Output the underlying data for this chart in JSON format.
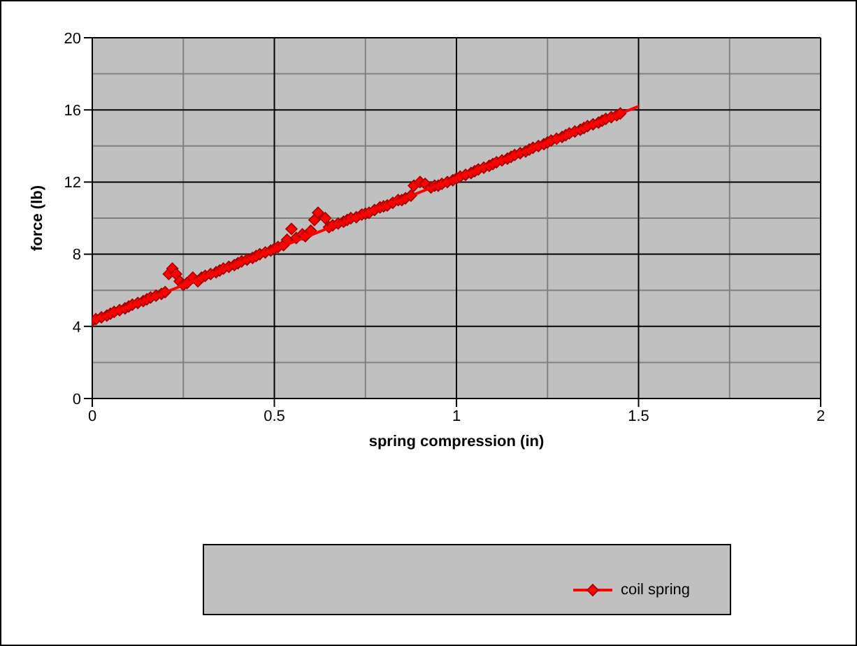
{
  "chart_data": {
    "type": "scatter",
    "xlabel": "spring compression (in)",
    "ylabel": "force (lb)",
    "xlim": [
      0,
      2
    ],
    "xticks": [
      0,
      0.5,
      1,
      1.5,
      2
    ],
    "ylim": [
      0,
      20
    ],
    "yticks": [
      0,
      4,
      8,
      12,
      16,
      20
    ],
    "grid": true,
    "legend": "bottom",
    "series": [
      {
        "name": "coil spring",
        "color": "#ff0000",
        "marker": "diamond",
        "x": [
          0,
          0.01,
          0.025,
          0.04,
          0.05,
          0.06,
          0.075,
          0.09,
          0.1,
          0.11,
          0.125,
          0.14,
          0.15,
          0.16,
          0.175,
          0.19,
          0.2,
          0.21,
          0.22,
          0.23,
          0.24,
          0.25,
          0.26,
          0.276,
          0.29,
          0.3,
          0.31,
          0.325,
          0.34,
          0.35,
          0.36,
          0.375,
          0.39,
          0.4,
          0.41,
          0.425,
          0.44,
          0.45,
          0.46,
          0.475,
          0.49,
          0.5,
          0.51,
          0.525,
          0.535,
          0.547,
          0.56,
          0.577,
          0.585,
          0.6,
          0.61,
          0.62,
          0.64,
          0.65,
          0.66,
          0.675,
          0.69,
          0.7,
          0.71,
          0.725,
          0.74,
          0.75,
          0.76,
          0.775,
          0.79,
          0.8,
          0.81,
          0.825,
          0.84,
          0.85,
          0.86,
          0.875,
          0.883,
          0.9,
          0.914,
          0.93,
          0.94,
          0.95,
          0.96,
          0.975,
          0.99,
          1.0,
          1.01,
          1.025,
          1.04,
          1.05,
          1.06,
          1.075,
          1.09,
          1.1,
          1.11,
          1.125,
          1.14,
          1.15,
          1.16,
          1.175,
          1.19,
          1.2,
          1.21,
          1.225,
          1.24,
          1.25,
          1.26,
          1.275,
          1.29,
          1.3,
          1.31,
          1.325,
          1.34,
          1.35,
          1.36,
          1.375,
          1.39,
          1.4,
          1.41,
          1.425,
          1.44,
          1.45
        ],
        "values": [
          4.3,
          4.4,
          4.5,
          4.6,
          4.7,
          4.8,
          4.9,
          5.0,
          5.1,
          5.2,
          5.3,
          5.4,
          5.5,
          5.6,
          5.7,
          5.8,
          5.9,
          6.9,
          7.2,
          6.9,
          6.5,
          6.3,
          6.4,
          6.7,
          6.5,
          6.7,
          6.8,
          6.9,
          7.0,
          7.1,
          7.2,
          7.3,
          7.4,
          7.5,
          7.6,
          7.7,
          7.8,
          7.9,
          8.0,
          8.1,
          8.2,
          8.3,
          8.4,
          8.5,
          8.8,
          9.4,
          8.9,
          9.1,
          9.0,
          9.3,
          9.9,
          10.3,
          10.0,
          9.5,
          9.6,
          9.7,
          9.8,
          9.9,
          10.0,
          10.05,
          10.2,
          10.25,
          10.3,
          10.45,
          10.6,
          10.65,
          10.7,
          10.85,
          11.0,
          11.0,
          11.1,
          11.25,
          11.8,
          12.0,
          11.9,
          11.7,
          11.8,
          11.8,
          11.9,
          12.0,
          12.1,
          12.2,
          12.3,
          12.4,
          12.5,
          12.6,
          12.7,
          12.8,
          12.9,
          13.0,
          13.1,
          13.2,
          13.3,
          13.4,
          13.5,
          13.6,
          13.7,
          13.8,
          13.9,
          14.0,
          14.1,
          14.2,
          14.3,
          14.4,
          14.5,
          14.6,
          14.7,
          14.8,
          14.9,
          15.0,
          15.1,
          15.2,
          15.3,
          15.4,
          15.5,
          15.6,
          15.7,
          15.8
        ]
      },
      {
        "type": "line",
        "color": "#ff0000",
        "marker": "none",
        "x": [
          0,
          1.5
        ],
        "values": [
          4.3,
          16.2
        ]
      }
    ]
  }
}
